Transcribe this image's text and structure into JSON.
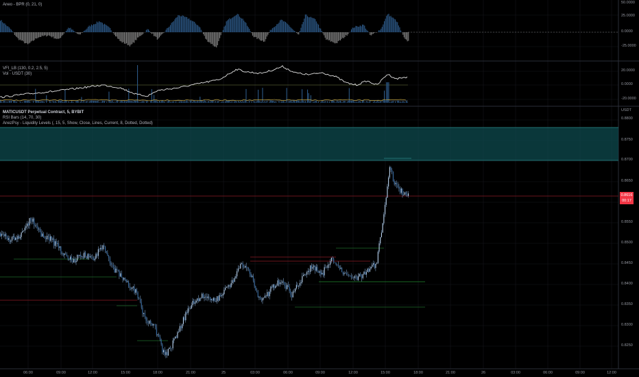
{
  "panes": {
    "bpr": {
      "legend": "Aneo - BPR (0, 21, 0)",
      "ticks": [
        "50.0000",
        "25.0000",
        "0.0000",
        "-25.0000"
      ]
    },
    "vfi": {
      "legend_1": "VFI_LB (130, 0.2, 2.5, 5)",
      "legend_2": "Vol · USDT (30)",
      "ticks": [
        "20.0000",
        "0.0000",
        "-20.0000"
      ]
    },
    "main": {
      "symbol": "MATICUSDT Perpetual Contract, 5, BYBIT",
      "legend_2": "RSI Bars (14, 70, 30)",
      "legend_3": "AnezPsy - Liquidity Levels (, 15, 5, Show, Close, Lines, Current, 8, Dotted, Dotted)",
      "currency": "USDT",
      "ticks": [
        "0.8800",
        "0.8750",
        "0.8700",
        "0.8650",
        "0.8550",
        "0.8500",
        "0.8450",
        "0.8400",
        "0.8350",
        "0.8300",
        "0.8250"
      ]
    }
  },
  "price_label": {
    "price": "0.8616",
    "countdown": "00:17",
    "color": "#f23645"
  },
  "time_axis": [
    "06:00",
    "09:00",
    "12:00",
    "15:00",
    "18:00",
    "21:00",
    "25",
    "03:00",
    "06:00",
    "09:00",
    "12:00",
    "15:00",
    "18:00",
    "21:00",
    "26",
    "03:00",
    "06:00",
    "09:00",
    "12:00"
  ],
  "colors": {
    "candle": "#8fb9e6",
    "bpr_pos": "#2c5886",
    "bpr_neg": "#7e7e7e",
    "zone": "#0e4a4d",
    "zone_edge": "#2a8a8c",
    "level_red": "#8e1c24",
    "level_green": "#1e6b2a",
    "vfi_line": "#e3e3e3"
  }
}
